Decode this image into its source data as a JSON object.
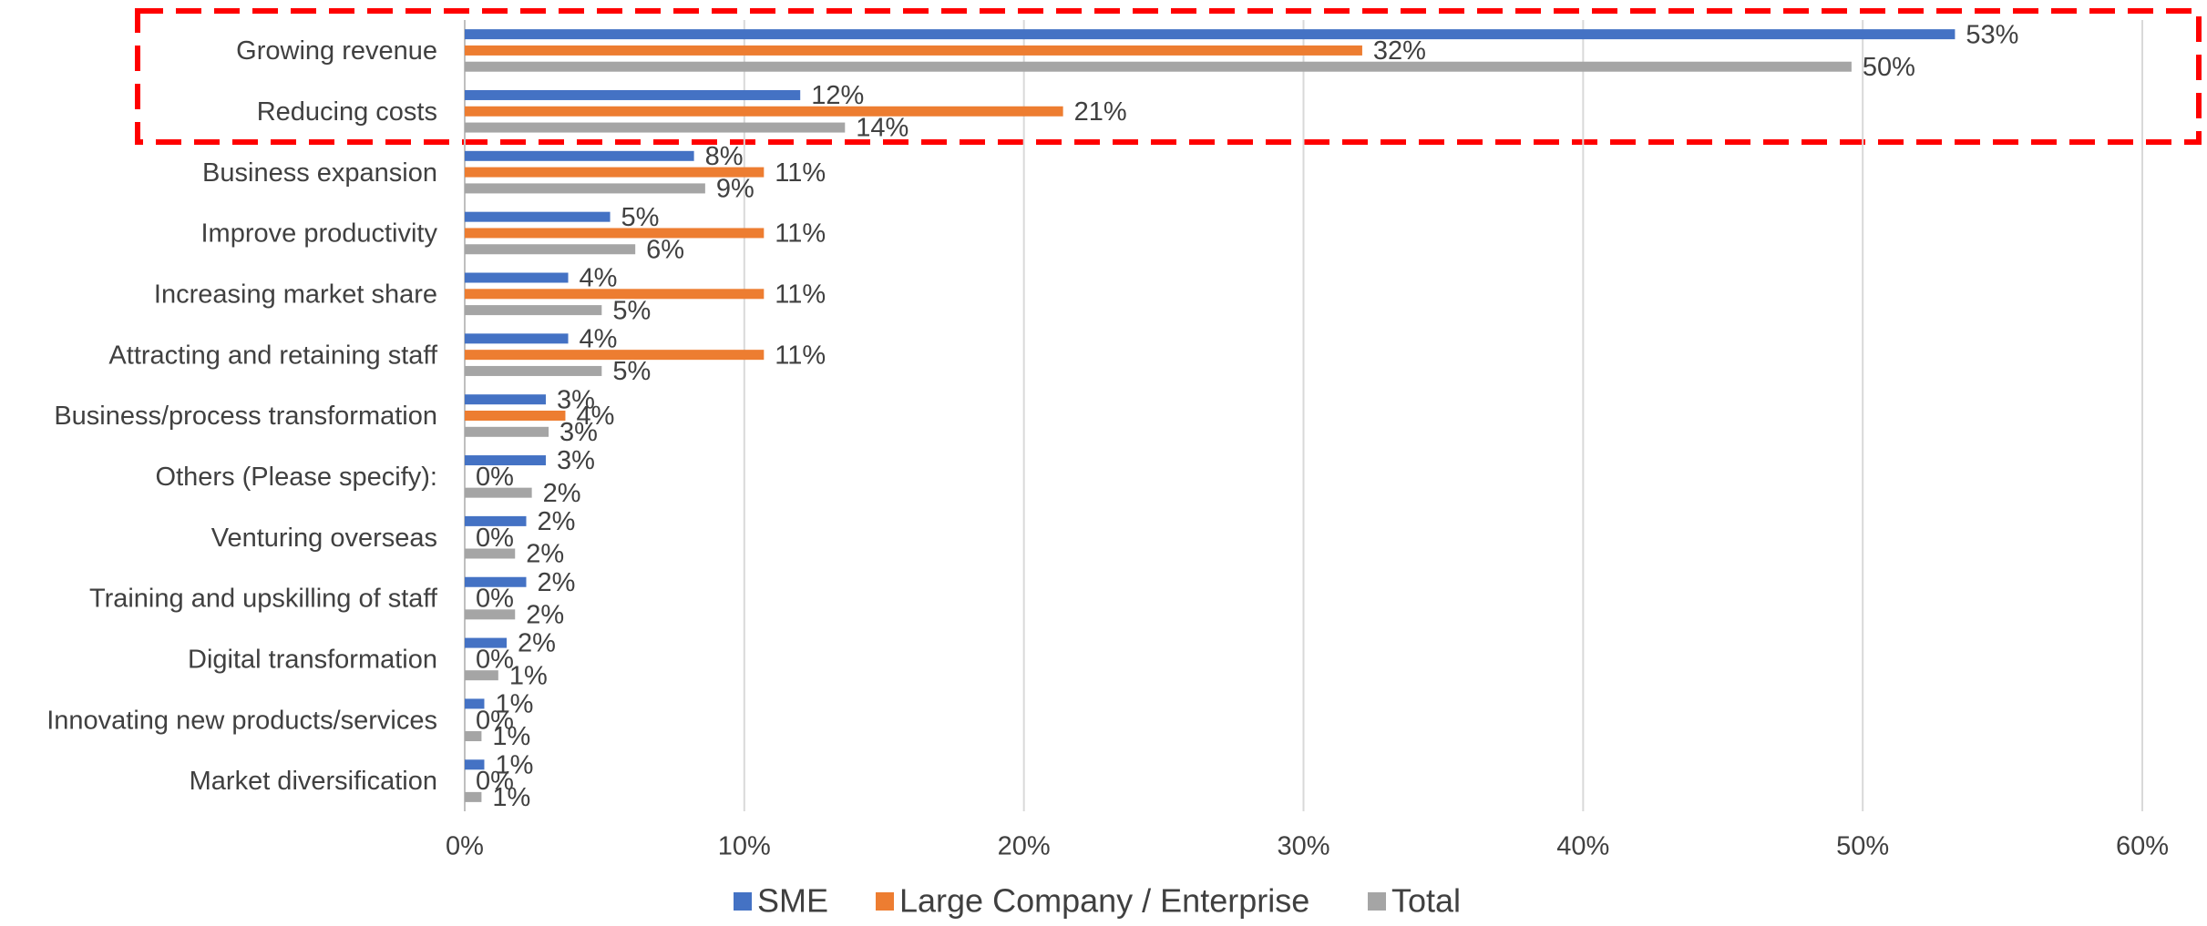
{
  "chart_data": {
    "type": "hbar",
    "legend": "bottom",
    "grid": true,
    "categories": [
      "Growing revenue",
      "Reducing costs",
      "Business expansion",
      "Improve productivity",
      "Increasing market share",
      "Attracting and retaining staff",
      "Business/process transformation",
      "Others (Please specify):",
      "Venturing overseas",
      "Training and upskilling of staff",
      "Digital transformation",
      "Innovating new products/services",
      "Market diversification"
    ],
    "series": [
      {
        "name": "SME",
        "color": "#4472c4",
        "values": [
          53.3,
          12.0,
          8.2,
          5.2,
          3.7,
          3.7,
          2.9,
          2.9,
          2.2,
          2.2,
          1.5,
          0.7,
          0.7
        ],
        "value_labels": [
          "53%",
          "12%",
          "8%",
          "5%",
          "4%",
          "4%",
          "3%",
          "3%",
          "2%",
          "2%",
          "2%",
          "1%",
          "1%"
        ]
      },
      {
        "name": "Large Company / Enterprise",
        "color": "#ed7d31",
        "values": [
          32.1,
          21.4,
          10.7,
          10.7,
          10.7,
          10.7,
          3.6,
          0,
          0,
          0,
          0,
          0,
          0
        ],
        "value_labels": [
          "32%",
          "21%",
          "11%",
          "11%",
          "11%",
          "11%",
          "4%",
          "0%",
          "0%",
          "0%",
          "0%",
          "0%",
          "0%"
        ]
      },
      {
        "name": "Total",
        "color": "#a5a5a5",
        "values": [
          49.6,
          13.6,
          8.6,
          6.1,
          4.9,
          4.9,
          3.0,
          2.4,
          1.8,
          1.8,
          1.2,
          0.6,
          0.6
        ],
        "value_labels": [
          "50%",
          "14%",
          "9%",
          "6%",
          "5%",
          "5%",
          "3%",
          "2%",
          "2%",
          "2%",
          "1%",
          "1%",
          "1%"
        ]
      }
    ],
    "xlim": [
      0,
      60
    ],
    "xticks": [
      {
        "value": 0,
        "label": "0%"
      },
      {
        "value": 10,
        "label": "10%"
      },
      {
        "value": 20,
        "label": "20%"
      },
      {
        "value": 30,
        "label": "30%"
      },
      {
        "value": 40,
        "label": "40%"
      },
      {
        "value": 50,
        "label": "50%"
      },
      {
        "value": 60,
        "label": "60%"
      }
    ]
  }
}
